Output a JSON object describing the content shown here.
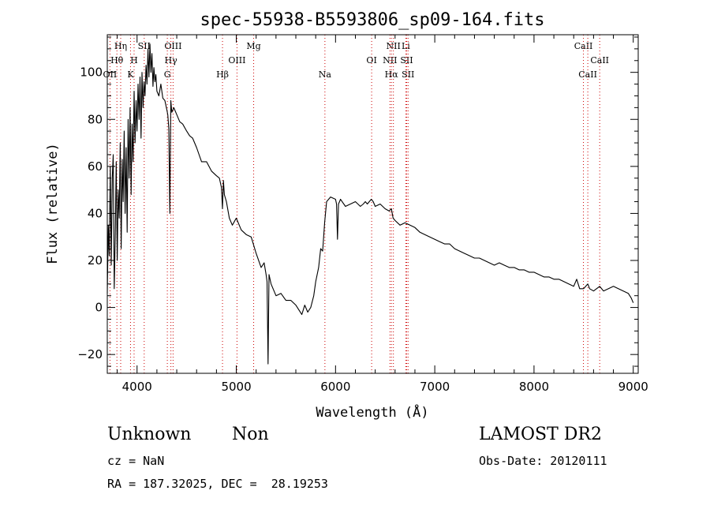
{
  "chart_data": {
    "type": "line",
    "title": "spec-55938-B5593806_sp09-164.fits",
    "xlabel": "Wavelength (Å)",
    "ylabel": "Flux (relative)",
    "xlim": [
      3700,
      9050
    ],
    "ylim": [
      -28,
      116
    ],
    "xticks": [
      4000,
      5000,
      6000,
      7000,
      8000,
      9000
    ],
    "yticks": [
      -20,
      0,
      20,
      40,
      60,
      80,
      100
    ],
    "grid": false,
    "line_color": "#000000",
    "marker_color": "#cc0000",
    "series": [
      {
        "x": [
          3700,
          3710,
          3720,
          3730,
          3740,
          3750,
          3760,
          3770,
          3780,
          3790,
          3800,
          3810,
          3820,
          3830,
          3840,
          3850,
          3860,
          3870,
          3880,
          3890,
          3900,
          3910,
          3920,
          3930,
          3940,
          3950,
          3960,
          3970,
          3980,
          3990,
          4000,
          4010,
          4020,
          4030,
          4040,
          4050,
          4060,
          4070,
          4080,
          4090,
          4100,
          4110,
          4120,
          4130,
          4140,
          4150,
          4160,
          4170,
          4180,
          4190,
          4200,
          4220,
          4240,
          4260,
          4280,
          4300,
          4310,
          4320,
          4330,
          4340,
          4350,
          4370,
          4400,
          4430,
          4460,
          4500,
          4530,
          4560,
          4600,
          4650,
          4700,
          4750,
          4800,
          4830,
          4850,
          4861,
          4870,
          4880,
          4900,
          4930,
          4960,
          5000,
          5050,
          5100,
          5150,
          5200,
          5250,
          5280,
          5300,
          5310,
          5320,
          5330,
          5350,
          5400,
          5450,
          5500,
          5550,
          5600,
          5630,
          5660,
          5690,
          5720,
          5750,
          5780,
          5800,
          5830,
          5850,
          5870,
          5890,
          5910,
          5950,
          6000,
          6010,
          6020,
          6030,
          6040,
          6050,
          6100,
          6150,
          6200,
          6250,
          6280,
          6300,
          6320,
          6340,
          6360,
          6380,
          6400,
          6450,
          6500,
          6540,
          6563,
          6580,
          6600,
          6650,
          6700,
          6750,
          6800,
          6850,
          6900,
          6950,
          7000,
          7050,
          7100,
          7150,
          7200,
          7250,
          7300,
          7350,
          7400,
          7450,
          7500,
          7550,
          7600,
          7650,
          7700,
          7750,
          7800,
          7850,
          7900,
          7950,
          8000,
          8050,
          8100,
          8150,
          8200,
          8250,
          8300,
          8350,
          8400,
          8430,
          8460,
          8500,
          8542,
          8560,
          8600,
          8630,
          8662,
          8700,
          8750,
          8800,
          8850,
          8900,
          8950,
          8980,
          9000
        ],
        "y": [
          6,
          35,
          22,
          60,
          18,
          55,
          65,
          8,
          30,
          62,
          20,
          50,
          38,
          70,
          25,
          63,
          45,
          75,
          40,
          68,
          32,
          80,
          55,
          85,
          48,
          78,
          62,
          92,
          70,
          88,
          75,
          95,
          80,
          98,
          72,
          100,
          85,
          96,
          90,
          103,
          95,
          110,
          98,
          112,
          100,
          108,
          94,
          102,
          96,
          99,
          92,
          90,
          95,
          89,
          88,
          84,
          82,
          76,
          40,
          88,
          83,
          85,
          82,
          79,
          78,
          75,
          73,
          72,
          68,
          62,
          62,
          58,
          56,
          55,
          51,
          42,
          54,
          48,
          45,
          38,
          35,
          38,
          33,
          31,
          30,
          23,
          17,
          19,
          14,
          11,
          -24,
          14,
          10,
          5,
          6,
          3,
          3,
          1,
          -1,
          -3,
          1,
          -2,
          0,
          5,
          11,
          17,
          25,
          24,
          36,
          45,
          47,
          46,
          44,
          29,
          44,
          45,
          46,
          43,
          44,
          45,
          43,
          44,
          45,
          44,
          45,
          46,
          45,
          43,
          44,
          42,
          41,
          42,
          38,
          37,
          35,
          36,
          35,
          34,
          32,
          31,
          30,
          29,
          28,
          27,
          27,
          25,
          24,
          23,
          22,
          21,
          21,
          20,
          19,
          18,
          19,
          18,
          17,
          17,
          16,
          16,
          15,
          15,
          14,
          13,
          13,
          12,
          12,
          11,
          10,
          9,
          12,
          8,
          8,
          10,
          8,
          7,
          8,
          9,
          7,
          8,
          9,
          8,
          7,
          6,
          4,
          2
        ]
      }
    ],
    "line_markers": [
      {
        "label": "Hη",
        "x": 3835,
        "row": 0
      },
      {
        "label": "Hθ",
        "x": 3797,
        "row": 1
      },
      {
        "label": "OII",
        "x": 3727,
        "row": 2
      },
      {
        "label": "H",
        "x": 3970,
        "row": 1
      },
      {
        "label": "K",
        "x": 3934,
        "row": 2
      },
      {
        "label": "SII",
        "x": 4072,
        "row": 0
      },
      {
        "label": "OIII",
        "x": 4363,
        "row": 0
      },
      {
        "label": "Hγ",
        "x": 4341,
        "row": 1
      },
      {
        "label": "G",
        "x": 4305,
        "row": 2
      },
      {
        "label": "Mg",
        "x": 5175,
        "row": 0
      },
      {
        "label": "OIII",
        "x": 5007,
        "row": 1
      },
      {
        "label": "Hβ",
        "x": 4861,
        "row": 2
      },
      {
        "label": "Na",
        "x": 5893,
        "row": 2
      },
      {
        "label": "NII",
        "x": 6583,
        "row": 0
      },
      {
        "label": "Li",
        "x": 6708,
        "row": 0
      },
      {
        "label": "OI",
        "x": 6364,
        "row": 1
      },
      {
        "label": "NII",
        "x": 6548,
        "row": 1
      },
      {
        "label": "SII",
        "x": 6717,
        "row": 1
      },
      {
        "label": "Hα",
        "x": 6563,
        "row": 2
      },
      {
        "label": "SII",
        "x": 6731,
        "row": 2
      },
      {
        "label": "CaII",
        "x": 8498,
        "row": 0
      },
      {
        "label": "CaII",
        "x": 8662,
        "row": 1
      },
      {
        "label": "CaII",
        "x": 8542,
        "row": 2
      }
    ]
  },
  "info": {
    "class_label": "Unknown",
    "subclass_label": "Non",
    "survey": "LAMOST DR2",
    "cz": "cz = NaN",
    "obs_date": "Obs-Date: 20120111",
    "coords": "RA = 187.32025, DEC =  28.19253"
  }
}
